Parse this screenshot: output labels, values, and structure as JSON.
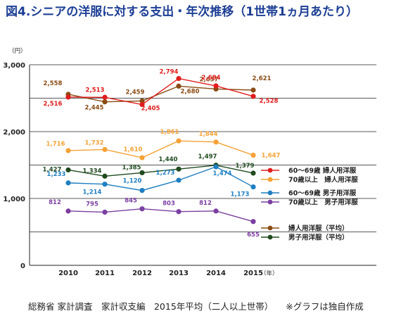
{
  "title": "図4.シニアの洋服に対する支出・年次推移（1世帯1ヵ月あたり）",
  "footer": {
    "source": "総務省 家計調査　家計収支編　2015年平均（二人以上世帯）",
    "note": "※グラフは独自作成"
  },
  "chart_data": {
    "type": "line",
    "title": "図4.シニアの洋服に対する支出・年次推移（1世帯1ヵ月あたり）",
    "x": [
      "2010",
      "2011",
      "2012",
      "2013",
      "2014",
      "2015"
    ],
    "x_unit": "（年）",
    "y_unit": "（円）",
    "ylim": [
      0,
      3000
    ],
    "yticks": [
      0,
      1000,
      2000,
      3000
    ],
    "ytick_labels": [
      "0",
      "1,000",
      "2,000",
      "3,000"
    ],
    "grid": true,
    "legend_position": "right",
    "series": [
      {
        "name": "60〜69歳 婦人用洋服",
        "color": "#e01d1d",
        "values": [
          2516,
          2513,
          2405,
          2794,
          2684,
          2528
        ],
        "labels": [
          "2,516",
          "2,513",
          "2,405",
          "2,794",
          "2,684",
          "2,528"
        ]
      },
      {
        "name": "70歳以上　婦人用洋服",
        "color": "#f5a236",
        "values": [
          1716,
          1732,
          1610,
          1861,
          1844,
          1647
        ],
        "labels": [
          "1,716",
          "1,732",
          "1,610",
          "1,861",
          "1,844",
          "1,647"
        ]
      },
      {
        "name": "60〜69歳 男子用洋服",
        "color": "#1f7fc1",
        "values": [
          1233,
          1214,
          1120,
          1273,
          1474,
          1173
        ],
        "labels": [
          "1,233",
          "1,214",
          "1,120",
          "1,273",
          "1,474",
          "1,173"
        ]
      },
      {
        "name": "70歳以上　男子用洋服",
        "color": "#7b3fa0",
        "values": [
          812,
          795,
          845,
          803,
          812,
          655
        ],
        "labels": [
          "812",
          "795",
          "845",
          "803",
          "812",
          "655"
        ]
      },
      {
        "name": "婦人用洋服（平均）",
        "color": "#8a4b14",
        "values": [
          2558,
          2445,
          2459,
          2680,
          2637,
          2621
        ],
        "labels": [
          "2,558",
          "2,445",
          "2,459",
          "2,680",
          "2,637",
          "2,621"
        ]
      },
      {
        "name": "男子用洋服（平均）",
        "color": "#1f4a1f",
        "values": [
          1427,
          1334,
          1385,
          1440,
          1497,
          1379
        ],
        "labels": [
          "1,427",
          "1,334",
          "1,385",
          "1,440",
          "1,497",
          "1,379"
        ]
      }
    ]
  }
}
